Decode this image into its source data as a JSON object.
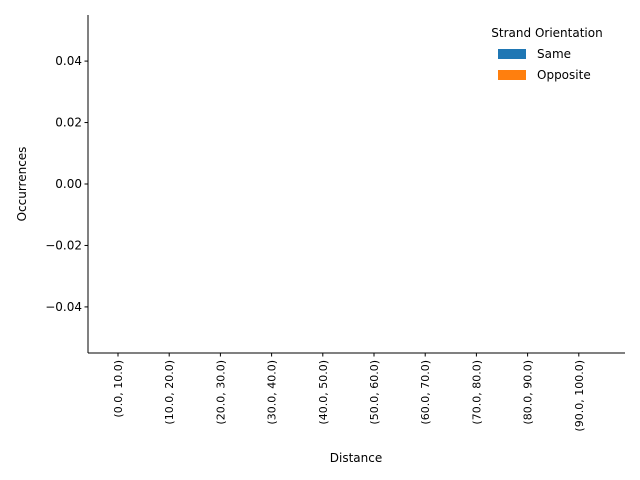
{
  "chart_data": {
    "type": "bar",
    "title": "",
    "xlabel": "Distance",
    "ylabel": "Occurrences",
    "categories": [
      "(0.0, 10.0)",
      "(10.0, 20.0)",
      "(20.0, 30.0)",
      "(30.0, 40.0)",
      "(40.0, 50.0)",
      "(50.0, 60.0)",
      "(60.0, 70.0)",
      "(70.0, 80.0)",
      "(80.0, 90.0)",
      "(90.0, 100.0)"
    ],
    "series": [
      {
        "name": "Same",
        "color": "#1f77b4",
        "values": [
          0,
          0,
          0,
          0,
          0,
          0,
          0,
          0,
          0,
          0
        ]
      },
      {
        "name": "Opposite",
        "color": "#ff7f0e",
        "values": [
          0,
          0,
          0,
          0,
          0,
          0,
          0,
          0,
          0,
          0
        ]
      }
    ],
    "ylim": [
      -0.055,
      0.055
    ],
    "yticks": [
      0.04,
      0.02,
      0.0,
      -0.02,
      -0.04
    ],
    "ytick_labels": [
      "0.04",
      "0.02",
      "0.00",
      "−0.02",
      "−0.04"
    ],
    "legend": {
      "title": "Strand Orientation",
      "position": "top-right",
      "frame": false
    },
    "grid": false,
    "spines": [
      "left",
      "bottom"
    ]
  }
}
